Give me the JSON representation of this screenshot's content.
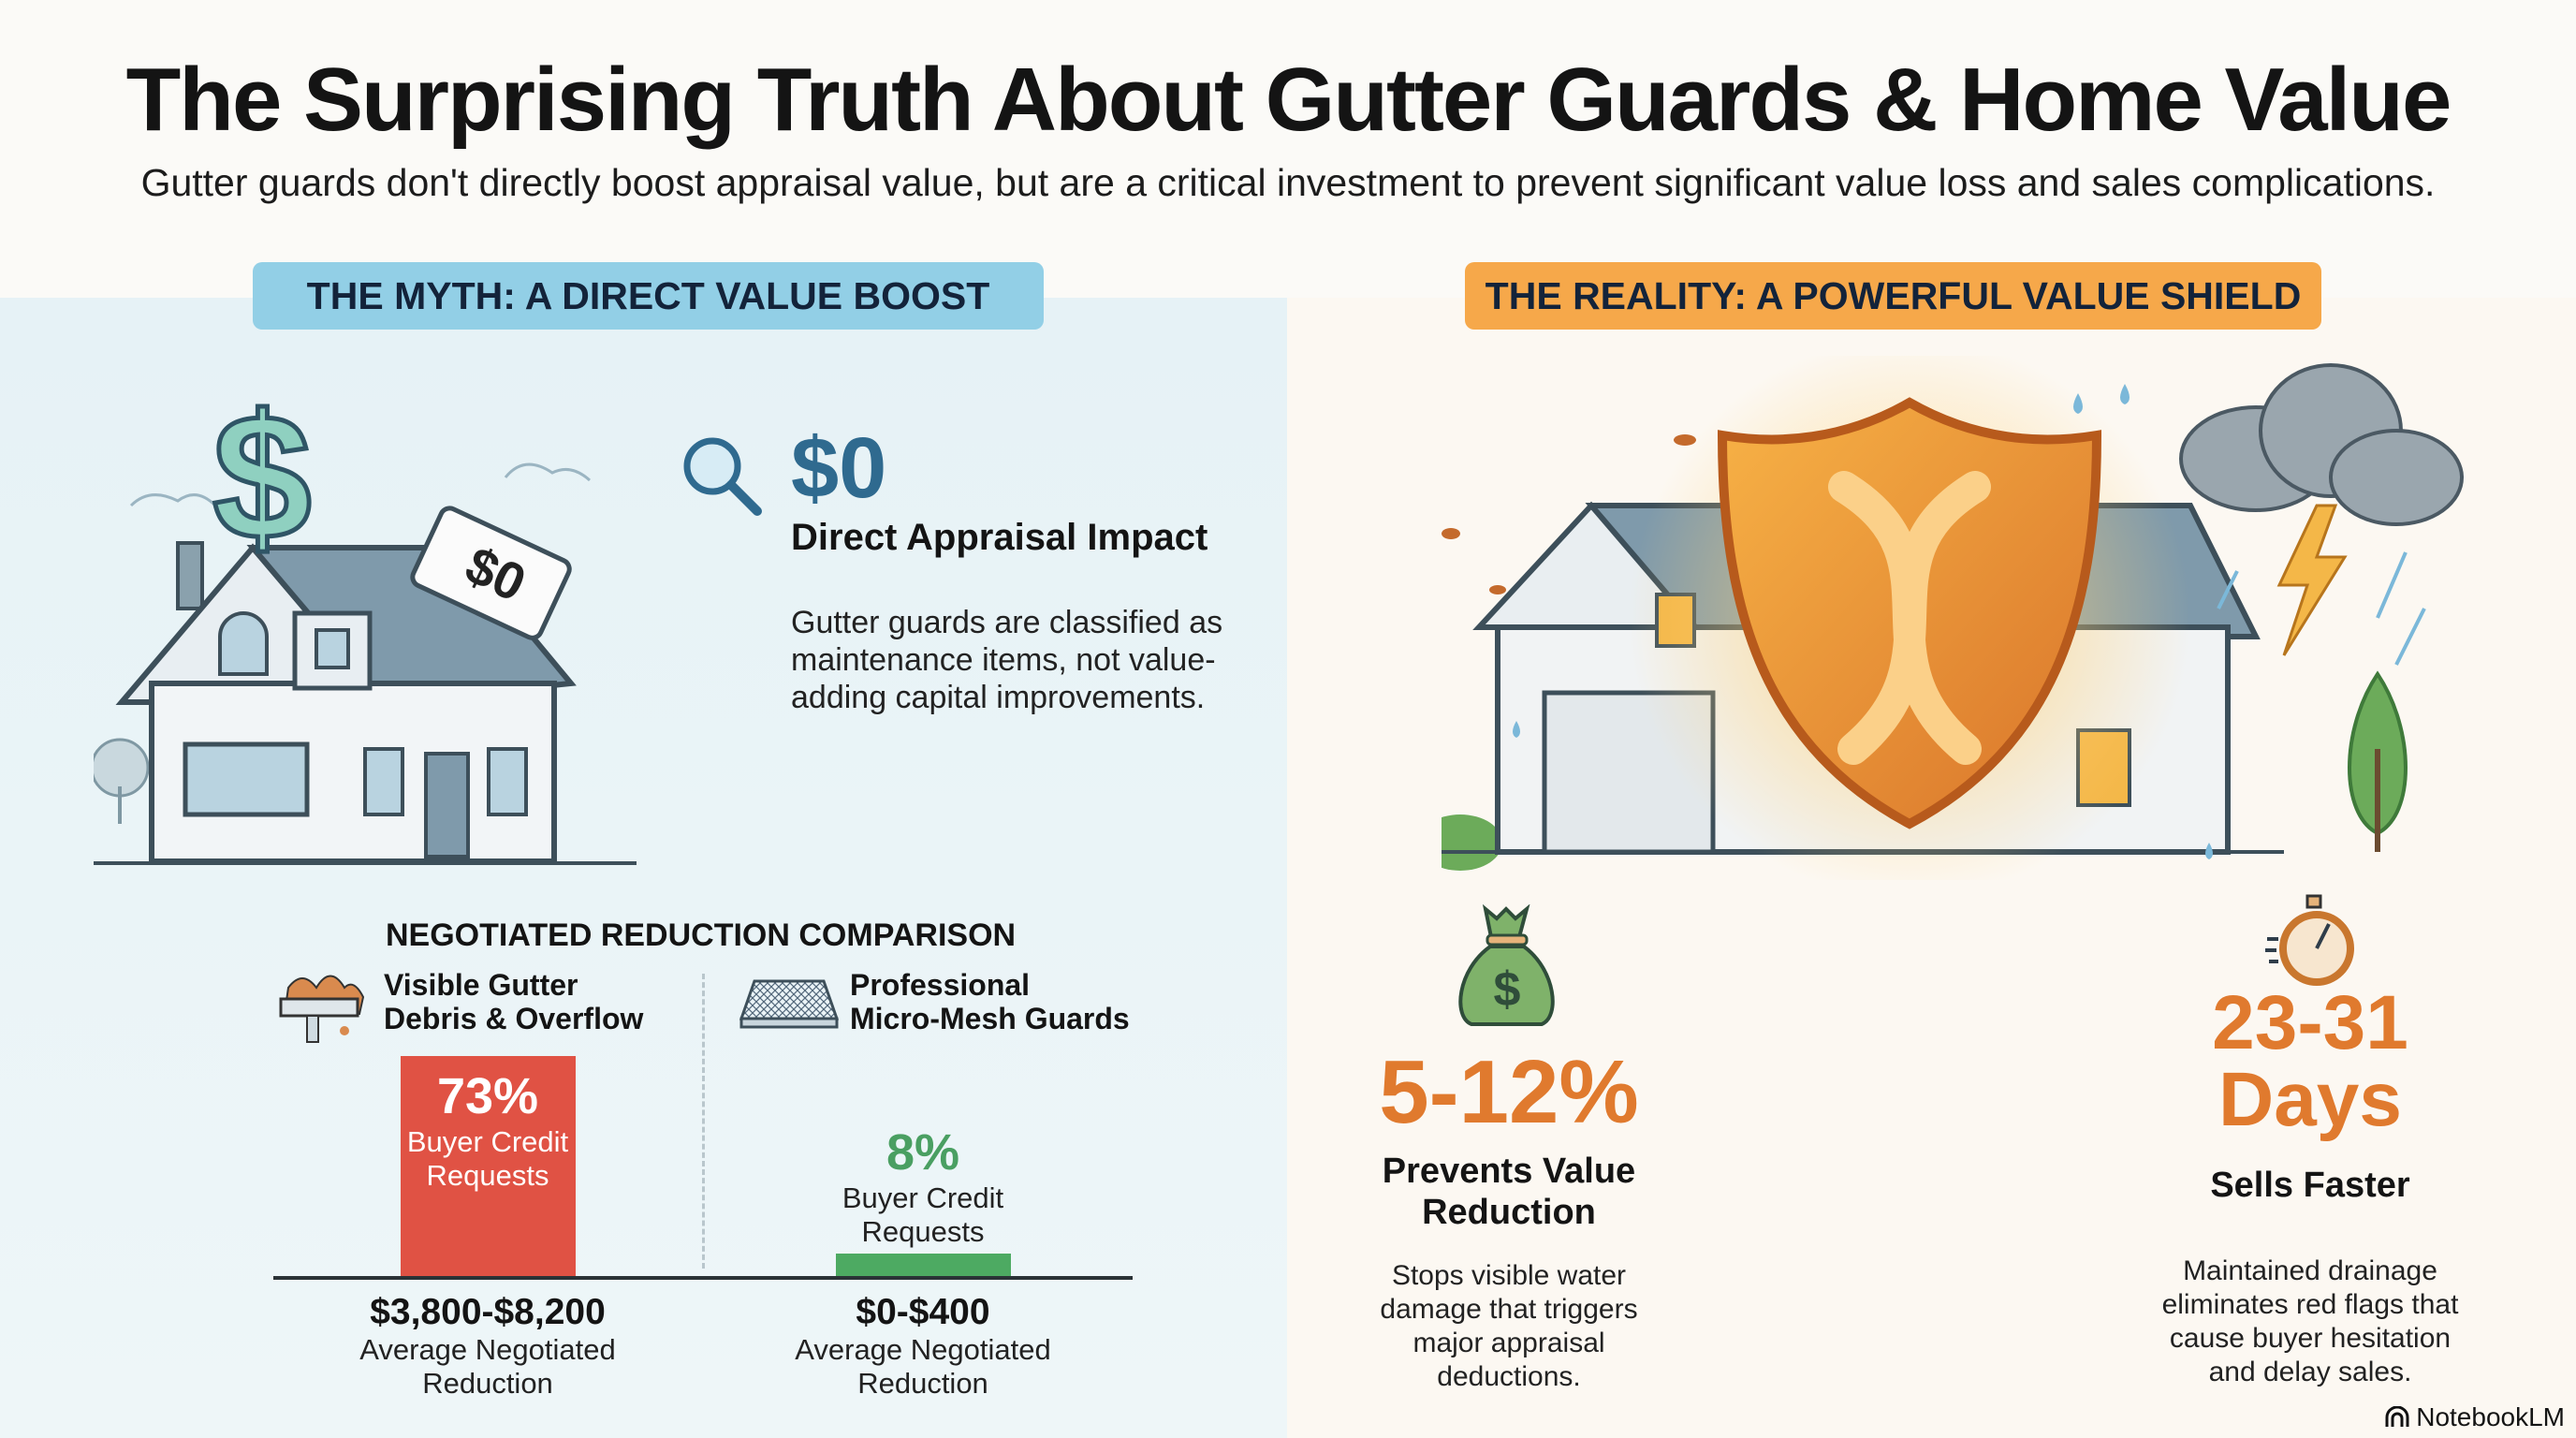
{
  "header": {
    "title": "The Surprising Truth About Gutter Guards & Home Value",
    "subtitle": "Gutter guards don't directly boost appraisal value, but are a critical investment to prevent significant value loss and sales complications."
  },
  "myth": {
    "pill": "THE MYTH: A DIRECT VALUE BOOST",
    "price_tag": "$0",
    "stat": "$0",
    "stat_label": "Direct Appraisal Impact",
    "description": "Gutter guards are classified as maintenance items, not value-adding capital improvements."
  },
  "comparison": {
    "title": "NEGOTIATED REDUCTION COMPARISON"
  },
  "chart_data": {
    "type": "bar",
    "title": "NEGOTIATED REDUCTION COMPARISON",
    "categories": [
      "Visible Gutter Debris & Overflow",
      "Professional Micro-Mesh Guards"
    ],
    "category_lines": [
      [
        "Visible Gutter",
        "Debris & Overflow"
      ],
      [
        "Professional",
        "Micro-Mesh Guards"
      ]
    ],
    "values": [
      73,
      8
    ],
    "value_labels": [
      "73%",
      "8%"
    ],
    "value_caption": [
      "Buyer Credit",
      "Requests"
    ],
    "ranges": [
      "$3,800-$8,200",
      "$0-$400"
    ],
    "range_caption": [
      "Average Negotiated",
      "Reduction"
    ],
    "colors": [
      "#e05244",
      "#4daa62"
    ],
    "ylim": [
      0,
      100
    ],
    "unit": "%"
  },
  "reality": {
    "pill": "THE REALITY: A POWERFUL VALUE SHIELD",
    "stats": [
      {
        "value": "5-12%",
        "head_lines": [
          "Prevents Value",
          "Reduction"
        ],
        "desc": "Stops visible water damage that triggers major appraisal deductions.",
        "icon": "money-bag-icon"
      },
      {
        "value_lines": [
          "23-31",
          "Days"
        ],
        "head_lines": [
          "Sells Faster"
        ],
        "desc": "Maintained drainage eliminates red flags that cause buyer hesitation and delay sales.",
        "icon": "stopwatch-icon"
      }
    ]
  },
  "brand": "NotebookLM"
}
